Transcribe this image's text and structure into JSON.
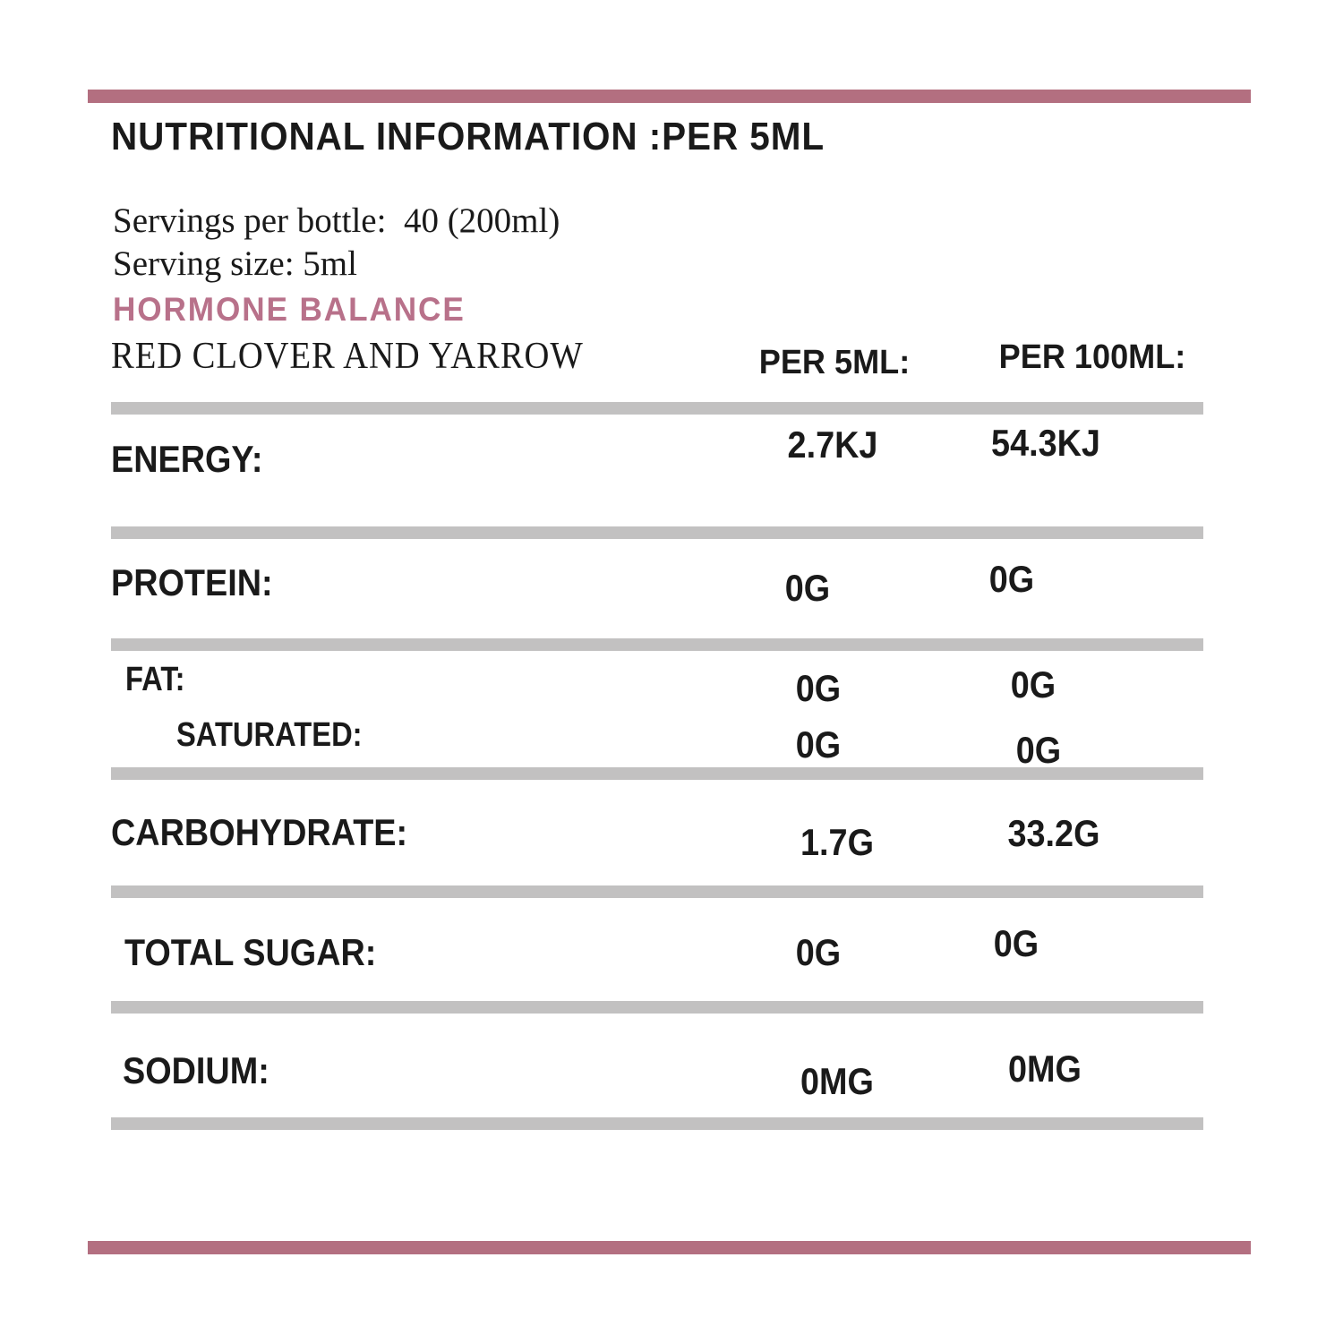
{
  "label": {
    "title": "NUTRITIONAL INFORMATION :PER 5ML",
    "servings_per_bottle": "Servings per bottle:  40 (200ml)",
    "serving_size": "Serving size: 5ml",
    "product_name": "HORMONE BALANCE",
    "variant_name": "RED CLOVER AND YARROW",
    "columns": {
      "per_5ml": "PER 5ML:",
      "per_100ml": "PER 100ML:"
    },
    "rows": [
      {
        "label": "ENERGY:",
        "per_5ml": "2.7KJ",
        "per_100ml": "54.3KJ"
      },
      {
        "label": "PROTEIN:",
        "per_5ml": "0G",
        "per_100ml": "0G"
      },
      {
        "label": "FAT:",
        "per_5ml": "0G",
        "per_100ml": "0G"
      },
      {
        "label": "SATURATED:",
        "per_5ml": "0G",
        "per_100ml": "0G"
      },
      {
        "label": "CARBOHYDRATE:",
        "per_5ml": "1.7G",
        "per_100ml": "33.2G"
      },
      {
        "label": "TOTAL SUGAR:",
        "per_5ml": "0G",
        "per_100ml": "0G"
      },
      {
        "label": "SODIUM:",
        "per_5ml": "0MG",
        "per_100ml": "0MG"
      }
    ],
    "colors": {
      "accent": "#b36f80",
      "accent_text": "#b8718a",
      "divider": "#c2c1c1",
      "text": "#1a1a1a"
    }
  }
}
